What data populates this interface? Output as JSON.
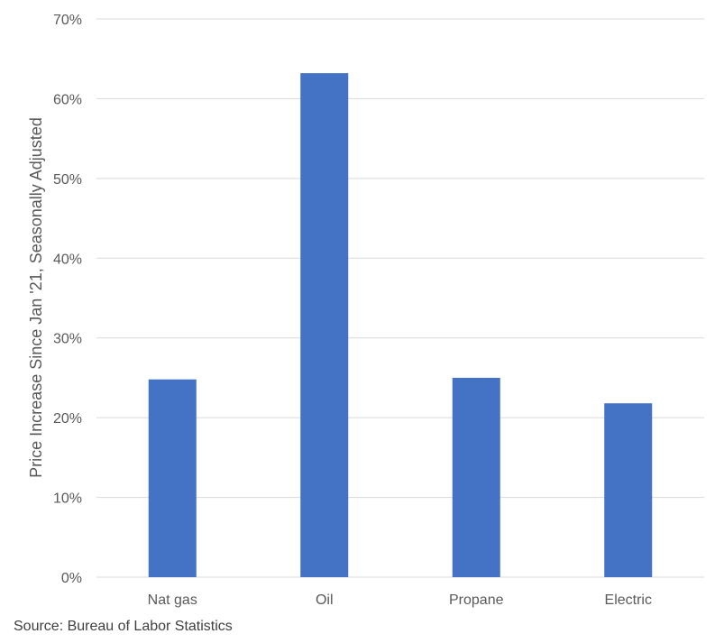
{
  "chart_data": {
    "type": "bar",
    "categories": [
      "Nat gas",
      "Oil",
      "Propane",
      "Electric"
    ],
    "values": [
      24.8,
      63.2,
      25.0,
      21.8
    ],
    "ylabel": "Price Increase Since Jan '21, Seasonally Adjusted",
    "xlabel": "",
    "ylim": [
      0,
      70
    ],
    "yticks": [
      0,
      10,
      20,
      30,
      40,
      50,
      60,
      70
    ],
    "ytick_labels": [
      "0%",
      "10%",
      "20%",
      "30%",
      "40%",
      "50%",
      "60%",
      "70%"
    ],
    "grid": true,
    "legend": "none",
    "bar_color": "#4472C4",
    "gridline_color": "#D9D9D9"
  },
  "source_note": "Source: Bureau of Labor Statistics"
}
